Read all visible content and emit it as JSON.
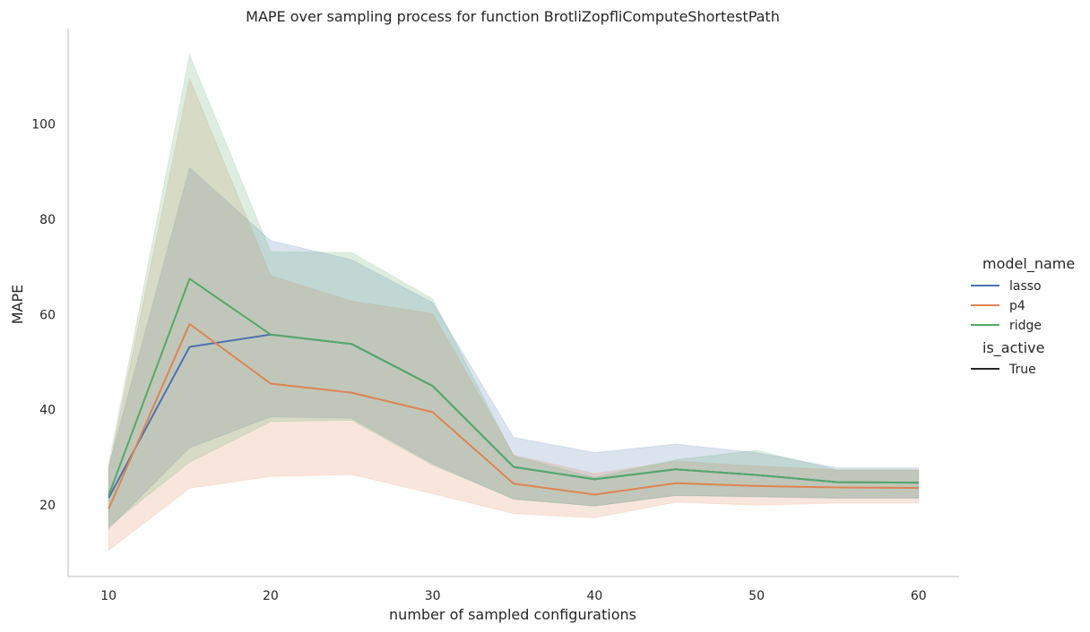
{
  "chart_data": {
    "type": "line",
    "title": "MAPE over sampling process for function BrotliZopfliComputeShortestPath",
    "xlabel": "number of sampled configurations",
    "ylabel": "MAPE",
    "xlim": [
      7.5,
      62.5
    ],
    "ylim": [
      5,
      120
    ],
    "x_ticks": [
      10,
      20,
      30,
      40,
      50,
      60
    ],
    "y_ticks": [
      20,
      40,
      60,
      80,
      100
    ],
    "grid": false,
    "legend": {
      "placement": "right",
      "hue_title": "model_name",
      "style_title": "is_active",
      "style_entries": [
        "True"
      ]
    },
    "x": [
      10,
      15,
      20,
      25,
      30,
      35,
      40,
      45,
      50,
      55,
      60
    ],
    "series": [
      {
        "name": "lasso",
        "color": "#4c72b0",
        "values": [
          21.5,
          53.2,
          55.8,
          53.8,
          45.0,
          28.0,
          25.4,
          27.5,
          26.3,
          24.8,
          24.7
        ],
        "ci_lower": [
          15.0,
          32.0,
          38.5,
          38.2,
          28.7,
          21.2,
          19.8,
          22.0,
          21.7,
          21.4,
          21.4
        ],
        "ci_upper": [
          28.0,
          90.8,
          75.5,
          71.5,
          62.5,
          34.2,
          31.0,
          32.8,
          31.0,
          27.8,
          27.8
        ]
      },
      {
        "name": "p4",
        "color": "#dd8452",
        "values": [
          19.2,
          58.0,
          45.5,
          43.6,
          39.5,
          24.5,
          22.2,
          24.6,
          24.0,
          23.7,
          23.6
        ],
        "ci_lower": [
          10.5,
          23.5,
          26.0,
          26.4,
          22.4,
          18.2,
          17.3,
          20.6,
          20.0,
          20.4,
          20.4
        ],
        "ci_upper": [
          27.5,
          109.5,
          68.2,
          62.8,
          60.2,
          30.5,
          26.6,
          29.2,
          28.2,
          27.4,
          27.4
        ]
      },
      {
        "name": "ridge",
        "color": "#55a868",
        "values": [
          22.0,
          67.5,
          55.8,
          53.8,
          45.0,
          28.0,
          25.4,
          27.5,
          26.3,
          24.8,
          24.7
        ],
        "ci_lower": [
          15.5,
          29.0,
          37.5,
          37.8,
          28.4,
          21.3,
          19.8,
          22.0,
          21.8,
          21.5,
          21.5
        ],
        "ci_upper": [
          28.5,
          114.5,
          73.2,
          73.0,
          63.3,
          30.3,
          25.8,
          29.5,
          31.5,
          27.3,
          27.3
        ]
      }
    ]
  }
}
